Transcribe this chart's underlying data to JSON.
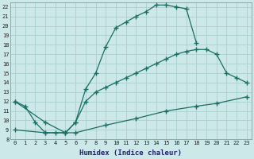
{
  "xlabel": "Humidex (Indice chaleur)",
  "bg_color": "#cce8e8",
  "grid_color": "#aacece",
  "line_color": "#1a6e64",
  "xlim": [
    -0.5,
    23.5
  ],
  "ylim": [
    8,
    22.5
  ],
  "xticks": [
    0,
    1,
    2,
    3,
    4,
    5,
    6,
    7,
    8,
    9,
    10,
    11,
    12,
    13,
    14,
    15,
    16,
    17,
    18,
    19,
    20,
    21,
    22,
    23
  ],
  "yticks": [
    8,
    9,
    10,
    11,
    12,
    13,
    14,
    15,
    16,
    17,
    18,
    19,
    20,
    21,
    22
  ],
  "line1_x": [
    0,
    1,
    2,
    3,
    4,
    5,
    6,
    7,
    8,
    9,
    10,
    11,
    12,
    13,
    14,
    15,
    16,
    17,
    18
  ],
  "line1_y": [
    12,
    11.5,
    9.8,
    8.7,
    8.7,
    8.7,
    9.8,
    13.3,
    15.0,
    17.8,
    19.8,
    20.4,
    21.0,
    21.5,
    22.2,
    22.2,
    22.0,
    21.8,
    18.2
  ],
  "line2_x": [
    0,
    3,
    5,
    6,
    7,
    8,
    9,
    10,
    11,
    12,
    13,
    14,
    15,
    16,
    17,
    18,
    19,
    20,
    21,
    22,
    23
  ],
  "line2_y": [
    12,
    9.8,
    8.7,
    9.8,
    12.0,
    13.0,
    13.5,
    14.0,
    14.5,
    15.0,
    15.5,
    16.0,
    16.5,
    17.0,
    17.3,
    17.5,
    17.5,
    17.0,
    15.0,
    14.5,
    14.0
  ],
  "line3_x": [
    0,
    3,
    5,
    6,
    9,
    12,
    15,
    18,
    20,
    23
  ],
  "line3_y": [
    9.0,
    8.7,
    8.7,
    8.7,
    9.5,
    10.2,
    11.0,
    11.5,
    11.8,
    12.5
  ]
}
